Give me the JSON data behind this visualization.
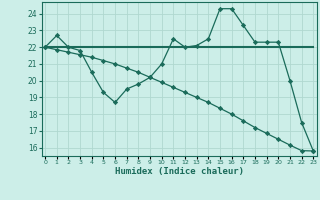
{
  "xlabel": "Humidex (Indice chaleur)",
  "bg_color": "#cceee8",
  "grid_color": "#b0d8d0",
  "line_color": "#1a6b5a",
  "x_vals": [
    0,
    1,
    2,
    3,
    4,
    5,
    6,
    7,
    8,
    9,
    10,
    11,
    12,
    13,
    14,
    15,
    16,
    17,
    18,
    19,
    20,
    21,
    22,
    23
  ],
  "y_zigzag": [
    22.0,
    22.7,
    22.0,
    21.8,
    20.5,
    19.3,
    18.7,
    19.5,
    19.8,
    20.2,
    21.0,
    22.5,
    22.0,
    22.1,
    22.5,
    24.3,
    24.3,
    23.3,
    22.3,
    22.3,
    22.3,
    20.0,
    17.5,
    15.8
  ],
  "y_flat": [
    22.0,
    22.0,
    22.0,
    22.0,
    22.0,
    22.0,
    22.0,
    22.0,
    22.0,
    22.0,
    22.0,
    22.0,
    22.0,
    22.0,
    22.0,
    22.0,
    22.0,
    22.0,
    22.0,
    22.0,
    22.0,
    22.0,
    22.0,
    22.0
  ],
  "y_diag": [
    22.0,
    21.85,
    21.7,
    21.55,
    21.4,
    21.2,
    21.0,
    20.75,
    20.5,
    20.2,
    19.9,
    19.6,
    19.3,
    19.0,
    18.7,
    18.35,
    18.0,
    17.6,
    17.2,
    16.85,
    16.5,
    16.15,
    15.82,
    15.8
  ],
  "ylim": [
    15.5,
    24.7
  ],
  "yticks": [
    16,
    17,
    18,
    19,
    20,
    21,
    22,
    23,
    24
  ],
  "xlim": [
    -0.3,
    23.3
  ]
}
